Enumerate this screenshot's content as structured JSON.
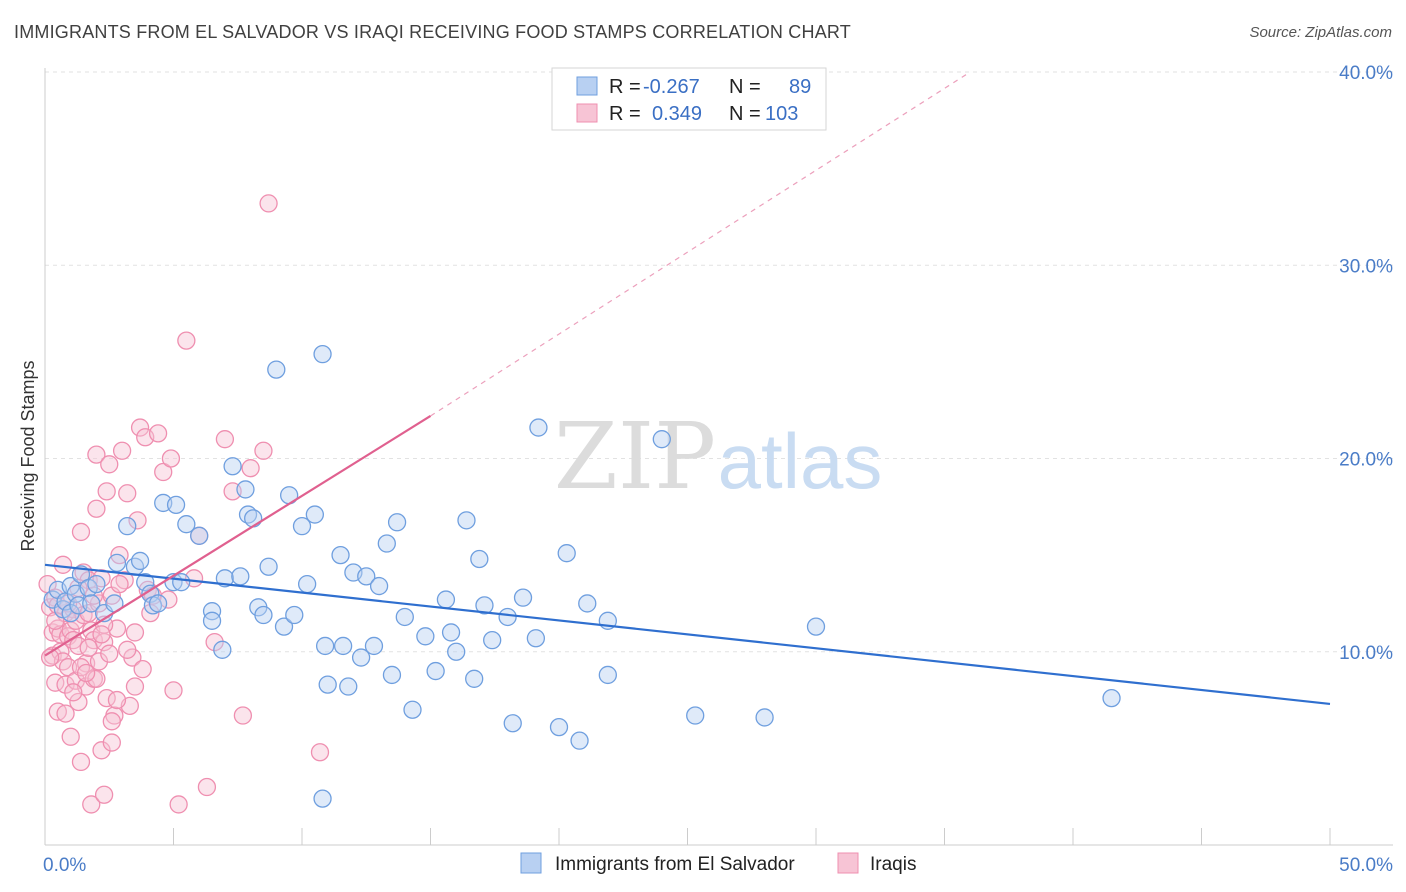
{
  "title": "IMMIGRANTS FROM EL SALVADOR VS IRAQI RECEIVING FOOD STAMPS CORRELATION CHART",
  "source": "Source: ZipAtlas.com",
  "watermark": {
    "zip": "ZIP",
    "atlas": "atlas"
  },
  "colors": {
    "blue": "#6f9fdf",
    "blue_fill": "#b8d0f2",
    "blue_line": "#2f6fcf",
    "pink": "#ef8fb0",
    "pink_fill": "#f7c4d5",
    "pink_line": "#e0608f"
  },
  "legend": {
    "rows": [
      {
        "r_label": "R =",
        "r_value": "-0.267",
        "n_label": "N =",
        "n_value": "89"
      },
      {
        "r_label": "R =",
        "r_value": "0.349",
        "n_label": "N =",
        "n_value": "103"
      }
    ]
  },
  "chart_data": {
    "type": "scatter",
    "ylabel": "Receiving Food Stamps",
    "xlim": [
      0,
      50
    ],
    "ylim": [
      0,
      40
    ],
    "x_tick_labels": [
      {
        "value": 0,
        "label": "0.0%"
      },
      {
        "value": 50,
        "label": "50.0%"
      }
    ],
    "y_tick_labels": [
      {
        "value": 10,
        "label": "10.0%"
      },
      {
        "value": 20,
        "label": "20.0%"
      },
      {
        "value": 30,
        "label": "30.0%"
      },
      {
        "value": 40,
        "label": "40.0%"
      }
    ],
    "grid": true,
    "series": [
      {
        "name": "Immigrants from El Salvador",
        "color": "blue",
        "trend": {
          "x1": 0,
          "y1": 14.5,
          "x2": 50,
          "y2": 7.3
        },
        "points": [
          [
            0.3,
            12.7
          ],
          [
            0.5,
            13.2
          ],
          [
            0.7,
            12.2
          ],
          [
            0.8,
            12.6
          ],
          [
            1.0,
            13.4
          ],
          [
            1.0,
            12.0
          ],
          [
            1.2,
            13.0
          ],
          [
            1.3,
            12.4
          ],
          [
            1.4,
            14.0
          ],
          [
            1.7,
            13.3
          ],
          [
            1.8,
            12.5
          ],
          [
            2.0,
            13.5
          ],
          [
            2.3,
            12.0
          ],
          [
            2.7,
            12.5
          ],
          [
            2.8,
            14.6
          ],
          [
            3.2,
            16.5
          ],
          [
            3.5,
            14.4
          ],
          [
            3.7,
            14.7
          ],
          [
            3.9,
            13.6
          ],
          [
            4.1,
            13.0
          ],
          [
            4.2,
            12.4
          ],
          [
            4.4,
            12.5
          ],
          [
            4.6,
            17.7
          ],
          [
            5.0,
            13.6
          ],
          [
            5.1,
            17.6
          ],
          [
            5.3,
            13.6
          ],
          [
            5.5,
            16.6
          ],
          [
            6.0,
            16.0
          ],
          [
            6.5,
            12.1
          ],
          [
            6.5,
            11.6
          ],
          [
            6.9,
            10.1
          ],
          [
            7.0,
            13.8
          ],
          [
            7.3,
            19.6
          ],
          [
            7.6,
            13.9
          ],
          [
            7.8,
            18.4
          ],
          [
            7.9,
            17.1
          ],
          [
            8.1,
            16.9
          ],
          [
            8.3,
            12.3
          ],
          [
            8.5,
            11.9
          ],
          [
            8.7,
            14.4
          ],
          [
            9.0,
            24.6
          ],
          [
            9.3,
            11.3
          ],
          [
            9.5,
            18.1
          ],
          [
            9.7,
            11.9
          ],
          [
            10.0,
            16.5
          ],
          [
            10.2,
            13.5
          ],
          [
            10.5,
            17.1
          ],
          [
            10.8,
            25.4
          ],
          [
            10.9,
            10.3
          ],
          [
            11.0,
            8.3
          ],
          [
            11.5,
            15.0
          ],
          [
            11.6,
            10.3
          ],
          [
            11.8,
            8.2
          ],
          [
            12.0,
            14.1
          ],
          [
            12.3,
            9.7
          ],
          [
            12.5,
            13.9
          ],
          [
            12.8,
            10.3
          ],
          [
            13.0,
            13.4
          ],
          [
            13.3,
            15.6
          ],
          [
            13.5,
            8.8
          ],
          [
            13.7,
            16.7
          ],
          [
            14.0,
            11.8
          ],
          [
            14.3,
            7.0
          ],
          [
            14.8,
            10.8
          ],
          [
            15.2,
            9.0
          ],
          [
            15.6,
            12.7
          ],
          [
            15.8,
            11.0
          ],
          [
            16.0,
            10.0
          ],
          [
            16.4,
            16.8
          ],
          [
            16.7,
            8.6
          ],
          [
            16.9,
            14.8
          ],
          [
            17.1,
            12.4
          ],
          [
            17.4,
            10.6
          ],
          [
            18.0,
            11.8
          ],
          [
            18.2,
            6.3
          ],
          [
            18.6,
            12.8
          ],
          [
            19.1,
            10.7
          ],
          [
            19.2,
            21.6
          ],
          [
            20.0,
            6.1
          ],
          [
            20.3,
            15.1
          ],
          [
            20.8,
            5.4
          ],
          [
            21.1,
            12.5
          ],
          [
            21.9,
            11.6
          ],
          [
            21.9,
            8.8
          ],
          [
            24.0,
            21.0
          ],
          [
            25.3,
            6.7
          ],
          [
            28.0,
            6.6
          ],
          [
            30.0,
            11.3
          ],
          [
            41.5,
            7.6
          ],
          [
            10.8,
            2.4
          ]
        ]
      },
      {
        "name": "Iraqis",
        "color": "pink",
        "trend": {
          "x1": 0,
          "y1": 9.8,
          "x2": 15,
          "y2": 22.2,
          "dash_to": {
            "x": 36,
            "y": 40
          }
        },
        "points": [
          [
            0.1,
            13.5
          ],
          [
            0.2,
            12.3
          ],
          [
            0.3,
            11.0
          ],
          [
            0.3,
            9.8
          ],
          [
            0.4,
            12.8
          ],
          [
            0.4,
            8.4
          ],
          [
            0.5,
            11.2
          ],
          [
            0.5,
            6.9
          ],
          [
            0.6,
            10.9
          ],
          [
            0.6,
            10.0
          ],
          [
            0.7,
            9.5
          ],
          [
            0.7,
            14.5
          ],
          [
            0.8,
            12.0
          ],
          [
            0.8,
            8.3
          ],
          [
            0.9,
            10.8
          ],
          [
            0.9,
            9.2
          ],
          [
            1.0,
            11.1
          ],
          [
            1.0,
            5.6
          ],
          [
            1.1,
            12.2
          ],
          [
            1.1,
            10.6
          ],
          [
            1.2,
            8.5
          ],
          [
            1.2,
            11.6
          ],
          [
            1.3,
            10.3
          ],
          [
            1.3,
            7.4
          ],
          [
            1.4,
            4.3
          ],
          [
            1.4,
            16.2
          ],
          [
            1.5,
            14.1
          ],
          [
            1.5,
            11.9
          ],
          [
            1.6,
            9.4
          ],
          [
            1.6,
            8.2
          ],
          [
            1.7,
            12.0
          ],
          [
            1.7,
            13.7
          ],
          [
            1.8,
            11.1
          ],
          [
            1.8,
            2.1
          ],
          [
            1.9,
            10.6
          ],
          [
            1.9,
            8.6
          ],
          [
            2.0,
            17.4
          ],
          [
            2.0,
            20.2
          ],
          [
            2.1,
            9.5
          ],
          [
            2.1,
            12.5
          ],
          [
            2.2,
            13.8
          ],
          [
            2.2,
            4.9
          ],
          [
            2.3,
            2.6
          ],
          [
            2.3,
            10.5
          ],
          [
            2.4,
            18.3
          ],
          [
            2.4,
            7.6
          ],
          [
            2.5,
            19.7
          ],
          [
            2.6,
            5.3
          ],
          [
            2.6,
            12.9
          ],
          [
            2.7,
            6.7
          ],
          [
            2.8,
            11.2
          ],
          [
            2.9,
            15.0
          ],
          [
            3.0,
            20.4
          ],
          [
            3.1,
            13.7
          ],
          [
            3.2,
            18.2
          ],
          [
            3.3,
            7.2
          ],
          [
            3.4,
            9.7
          ],
          [
            3.5,
            11.0
          ],
          [
            3.6,
            16.8
          ],
          [
            3.7,
            21.6
          ],
          [
            3.9,
            21.1
          ],
          [
            4.0,
            13.2
          ],
          [
            4.2,
            12.9
          ],
          [
            4.4,
            21.3
          ],
          [
            4.6,
            19.3
          ],
          [
            4.8,
            12.7
          ],
          [
            4.9,
            20.0
          ],
          [
            5.0,
            8.0
          ],
          [
            5.2,
            2.1
          ],
          [
            5.5,
            26.1
          ],
          [
            5.8,
            13.8
          ],
          [
            6.0,
            16.0
          ],
          [
            6.3,
            3.0
          ],
          [
            6.6,
            10.5
          ],
          [
            7.0,
            21.0
          ],
          [
            7.3,
            18.3
          ],
          [
            7.7,
            6.7
          ],
          [
            8.0,
            19.5
          ],
          [
            8.5,
            20.4
          ],
          [
            8.7,
            33.2
          ],
          [
            10.7,
            4.8
          ],
          [
            0.2,
            9.7
          ],
          [
            0.5,
            12.4
          ],
          [
            0.8,
            6.8
          ],
          [
            1.1,
            7.9
          ],
          [
            1.4,
            9.2
          ],
          [
            1.7,
            10.2
          ],
          [
            2.0,
            8.6
          ],
          [
            2.3,
            11.4
          ],
          [
            2.6,
            6.4
          ],
          [
            2.9,
            13.5
          ],
          [
            3.2,
            10.1
          ],
          [
            3.5,
            8.2
          ],
          [
            3.8,
            9.1
          ],
          [
            4.1,
            12.0
          ],
          [
            0.4,
            11.6
          ],
          [
            0.9,
            12.5
          ],
          [
            1.3,
            13.3
          ],
          [
            1.6,
            8.9
          ],
          [
            1.9,
            12.9
          ],
          [
            2.2,
            10.9
          ],
          [
            2.5,
            9.9
          ],
          [
            2.8,
            7.5
          ]
        ]
      }
    ],
    "legend_position": "top-center",
    "bottom_legend": [
      "Immigrants from El Salvador",
      "Iraqis"
    ]
  }
}
